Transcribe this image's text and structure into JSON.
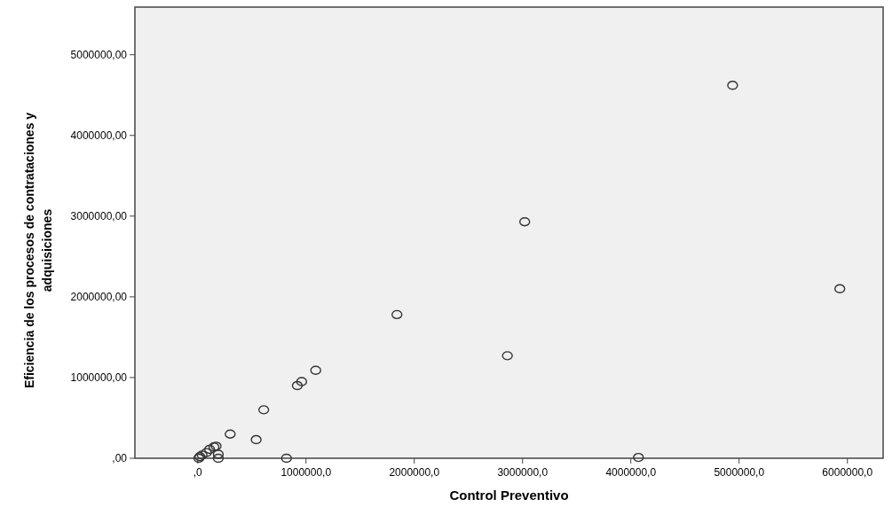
{
  "chart_data": {
    "type": "scatter",
    "xlabel": "Control Preventivo",
    "ylabel": "Eficiencia de los procesos de contrataciones y adquisiciones",
    "x": [
      4940000,
      5930000,
      3020000,
      2860000,
      1840000,
      4070000,
      1090000,
      960000,
      920000,
      610000,
      300000,
      540000,
      820000,
      170000,
      150000,
      110000,
      190000,
      190000,
      40000,
      80000,
      10000,
      20000
    ],
    "values": [
      4620000,
      2100000,
      2930000,
      1270000,
      1780000,
      10000,
      1090000,
      950000,
      900000,
      600000,
      300000,
      230000,
      0,
      150000,
      140000,
      110000,
      50000,
      0,
      40000,
      70000,
      0,
      20000
    ],
    "color": "#333333",
    "marker": "circle",
    "grid": false,
    "xlim": [
      -580000,
      6330000
    ],
    "ylim": [
      0,
      5590000
    ],
    "xticks": [
      {
        "value": 0,
        "label": ",0"
      },
      {
        "value": 1000000,
        "label": "1000000,0"
      },
      {
        "value": 2000000,
        "label": "2000000,0"
      },
      {
        "value": 3000000,
        "label": "3000000,0"
      },
      {
        "value": 4000000,
        "label": "4000000,0"
      },
      {
        "value": 5000000,
        "label": "5000000,0"
      },
      {
        "value": 6000000,
        "label": "6000000,0"
      }
    ],
    "yticks": [
      {
        "value": 0,
        "label": ",00"
      },
      {
        "value": 1000000,
        "label": "1000000,00"
      },
      {
        "value": 2000000,
        "label": "2000000,00"
      },
      {
        "value": 3000000,
        "label": "3000000,00"
      },
      {
        "value": 4000000,
        "label": "4000000,00"
      },
      {
        "value": 5000000,
        "label": "5000000,00"
      }
    ]
  }
}
